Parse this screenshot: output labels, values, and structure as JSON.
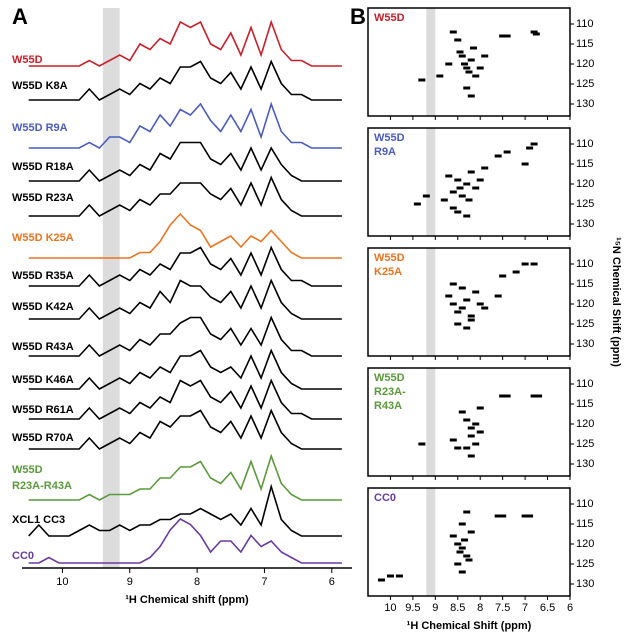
{
  "chart_data": [
    {
      "type": "line",
      "panel_label": "A",
      "xlabel": "¹H Chemical shift (ppm)",
      "xlim": [
        10.6,
        5.7
      ],
      "xticks": [
        10,
        9,
        8,
        7,
        6
      ],
      "highlight_band": [
        9.4,
        9.15
      ],
      "x": [
        10.5,
        10.35,
        10.2,
        10.05,
        9.9,
        9.75,
        9.6,
        9.45,
        9.3,
        9.15,
        9.0,
        8.85,
        8.7,
        8.55,
        8.4,
        8.25,
        8.1,
        7.95,
        7.8,
        7.65,
        7.5,
        7.35,
        7.2,
        7.05,
        6.9,
        6.75,
        6.6,
        6.45,
        6.3,
        6.15,
        6.0,
        5.85
      ],
      "series": [
        {
          "name": [
            "W55D"
          ],
          "color": "#c8202a",
          "values": [
            0,
            0,
            0,
            0,
            0,
            0,
            1,
            0,
            1,
            2,
            1,
            4,
            3,
            5,
            4,
            8,
            7,
            8,
            4,
            3,
            6,
            2,
            7,
            2,
            8,
            3,
            1,
            1,
            0,
            0,
            0,
            0
          ]
        },
        {
          "name": [
            "W55D K8A"
          ],
          "color": "#000000",
          "values": [
            0,
            0,
            0,
            0,
            0,
            0,
            2,
            0,
            1,
            2,
            1,
            3,
            2,
            4,
            3,
            6,
            6,
            7,
            4,
            3,
            5,
            2,
            6,
            2,
            7,
            3,
            1,
            1,
            0,
            0,
            0,
            0
          ]
        },
        {
          "name": [
            "W55D R9A"
          ],
          "color": "#4a5cc0",
          "values": [
            0,
            0,
            0,
            0,
            0,
            0,
            1,
            0,
            2,
            2,
            1,
            4,
            3,
            6,
            4,
            7,
            6,
            8,
            5,
            3,
            6,
            3,
            7,
            2,
            8,
            3,
            1,
            1,
            0,
            0,
            0,
            0
          ]
        },
        {
          "name": [
            "W55D R18A"
          ],
          "color": "#000000",
          "values": [
            0,
            0,
            0,
            0,
            0,
            0,
            2,
            0,
            1,
            2,
            1,
            3,
            2,
            5,
            4,
            7,
            7,
            7,
            4,
            3,
            5,
            2,
            6,
            2,
            6,
            3,
            1,
            0,
            0,
            0,
            0,
            0
          ]
        },
        {
          "name": [
            "W55D R23A"
          ],
          "color": "#000000",
          "values": [
            0,
            0,
            0,
            0,
            0,
            0,
            2,
            0,
            1,
            2,
            1,
            3,
            2,
            4,
            4,
            6,
            6,
            6,
            4,
            3,
            5,
            2,
            6,
            2,
            7,
            3,
            1,
            0,
            0,
            0,
            0,
            0
          ]
        },
        {
          "name": [
            "W55D K25A"
          ],
          "color": "#ea7420",
          "values": [
            0,
            0,
            0,
            0,
            0,
            0,
            0,
            0,
            0,
            0,
            0,
            1,
            1,
            3,
            6,
            8,
            6,
            5,
            2,
            3,
            4,
            2,
            4,
            3,
            5,
            3,
            1,
            0,
            0,
            0,
            0,
            0
          ]
        },
        {
          "name": [
            "W55D R35A"
          ],
          "color": "#000000",
          "values": [
            0,
            0,
            0,
            0,
            0,
            0,
            2,
            0,
            1,
            2,
            1,
            3,
            2,
            4,
            3,
            6,
            6,
            7,
            4,
            3,
            5,
            2,
            6,
            2,
            7,
            3,
            1,
            1,
            0,
            0,
            0,
            0
          ]
        },
        {
          "name": [
            "W55D K42A"
          ],
          "color": "#000000",
          "values": [
            0,
            0,
            0,
            0,
            0,
            0,
            2,
            0,
            1,
            2,
            1,
            3,
            2,
            5,
            3,
            7,
            6,
            6,
            4,
            3,
            5,
            2,
            6,
            2,
            7,
            3,
            1,
            0,
            0,
            0,
            0,
            0
          ]
        },
        {
          "name": [
            "W55D R43A"
          ],
          "color": "#000000",
          "values": [
            0,
            0,
            0,
            0,
            0,
            0,
            2,
            0,
            1,
            2,
            1,
            3,
            2,
            4,
            4,
            6,
            7,
            7,
            4,
            3,
            5,
            2,
            5,
            2,
            7,
            3,
            1,
            1,
            0,
            0,
            0,
            0
          ]
        },
        {
          "name": [
            "W55D K46A"
          ],
          "color": "#000000",
          "values": [
            0,
            0,
            0,
            0,
            0,
            0,
            2,
            0,
            1,
            2,
            1,
            3,
            2,
            4,
            3,
            6,
            6,
            7,
            4,
            3,
            4,
            2,
            6,
            2,
            7,
            3,
            1,
            0,
            0,
            0,
            0,
            0
          ]
        },
        {
          "name": [
            "W55D R61A"
          ],
          "color": "#000000",
          "values": [
            0,
            0,
            0,
            0,
            0,
            0,
            2,
            0,
            1,
            2,
            1,
            3,
            2,
            4,
            3,
            7,
            6,
            7,
            4,
            3,
            5,
            2,
            6,
            2,
            7,
            3,
            1,
            1,
            0,
            0,
            0,
            0
          ]
        },
        {
          "name": [
            "W55D R70A"
          ],
          "color": "#000000",
          "values": [
            0,
            0,
            0,
            0,
            0,
            0,
            2,
            0,
            1,
            2,
            1,
            3,
            2,
            5,
            4,
            6,
            6,
            7,
            4,
            3,
            5,
            2,
            6,
            2,
            7,
            3,
            1,
            0,
            0,
            0,
            0,
            0
          ]
        },
        {
          "name": [
            "W55D",
            "R23A-R43A"
          ],
          "color": "#5a9a3a",
          "values": [
            0,
            0,
            0,
            0,
            0,
            0,
            1,
            0,
            1,
            1,
            1,
            2,
            2,
            4,
            4,
            6,
            6,
            7,
            4,
            3,
            5,
            2,
            7,
            2,
            8,
            3,
            1,
            0,
            0,
            0,
            0,
            0
          ]
        },
        {
          "name": [
            "XCL1 CC3"
          ],
          "color": "#000000",
          "values": [
            0,
            2,
            0,
            0,
            0,
            1,
            2,
            1,
            1,
            2,
            1,
            2,
            2,
            3,
            3,
            4,
            4,
            5,
            4,
            3,
            4,
            2,
            5,
            2,
            9,
            3,
            1,
            0,
            0,
            0,
            0,
            0
          ]
        },
        {
          "name": [
            "CC0"
          ],
          "color": "#6a3aa0",
          "values": [
            0,
            0,
            1,
            0,
            0,
            0,
            0,
            0,
            0,
            0,
            0,
            0,
            1,
            3,
            6,
            8,
            7,
            5,
            2,
            4,
            4,
            2,
            5,
            3,
            4,
            2,
            1,
            0,
            0,
            0,
            0,
            0
          ]
        }
      ]
    },
    {
      "type": "scatter",
      "panel_label": "B",
      "title": [
        "W55D"
      ],
      "color": "#c8202a",
      "xlim": [
        10.5,
        6
      ],
      "ylim": [
        106,
        133
      ],
      "xticks": [
        10,
        9.5,
        9,
        8.5,
        8,
        7.5,
        7,
        6.5,
        6
      ],
      "yticks": [
        110,
        115,
        120,
        125,
        130
      ],
      "highlight_band": [
        9.2,
        9.0
      ],
      "x": [
        8.6,
        8.5,
        8.45,
        8.4,
        8.35,
        8.3,
        8.25,
        8.2,
        8.15,
        8.1,
        8.0,
        7.9,
        7.5,
        7.4,
        6.8,
        6.75,
        8.7,
        8.9,
        9.3,
        8.3,
        8.2
      ],
      "y": [
        112,
        114,
        117,
        118,
        120,
        121,
        122,
        119,
        116,
        123,
        121,
        118,
        113,
        113,
        112,
        112.5,
        120,
        123,
        124,
        126,
        128
      ]
    },
    {
      "type": "scatter",
      "title": [
        "W55D",
        "R9A"
      ],
      "color": "#4a5cc0",
      "xlim": [
        10.5,
        6
      ],
      "ylim": [
        106,
        133
      ],
      "xticks": [
        10,
        9.5,
        9,
        8.5,
        8,
        7.5,
        7,
        6.5,
        6
      ],
      "yticks": [
        110,
        115,
        120,
        125,
        130
      ],
      "highlight_band": [
        9.2,
        9.0
      ],
      "x": [
        8.7,
        8.6,
        8.5,
        8.45,
        8.4,
        8.3,
        8.25,
        8.2,
        8.1,
        8.0,
        7.9,
        8.6,
        8.8,
        9.2,
        9.4,
        7.6,
        7.4,
        7.0,
        6.9,
        6.8,
        8.3,
        8.5
      ],
      "y": [
        118,
        122,
        119,
        121,
        123,
        120,
        124,
        117,
        121,
        119,
        116,
        126,
        124,
        123,
        125,
        113,
        112,
        115,
        111,
        110,
        128,
        127
      ]
    },
    {
      "type": "scatter",
      "title": [
        "W55D",
        "K25A"
      ],
      "color": "#ea7420",
      "ylabel": "¹⁵N Chemical Shift (ppm)",
      "xlim": [
        10.5,
        6
      ],
      "ylim": [
        106,
        133
      ],
      "xticks": [
        10,
        9.5,
        9,
        8.5,
        8,
        7.5,
        7,
        6.5,
        6
      ],
      "yticks": [
        110,
        115,
        120,
        125,
        130
      ],
      "highlight_band": [
        9.2,
        9.0
      ],
      "x": [
        8.7,
        8.6,
        8.5,
        8.4,
        8.3,
        8.2,
        8.1,
        8.0,
        8.5,
        8.3,
        7.5,
        7.2,
        7.0,
        6.8,
        7.6,
        8.6,
        8.4,
        8.2,
        7.9
      ],
      "y": [
        118,
        120,
        122,
        121,
        119,
        123,
        117,
        120,
        125,
        126,
        113,
        112,
        110,
        110,
        118,
        115,
        116,
        124,
        121
      ]
    },
    {
      "type": "scatter",
      "title": [
        "W55D",
        "R23A-",
        "R43A"
      ],
      "color": "#5a9a3a",
      "xlim": [
        10.5,
        6
      ],
      "ylim": [
        106,
        133
      ],
      "xticks": [
        10,
        9.5,
        9,
        8.5,
        8,
        7.5,
        7,
        6.5,
        6
      ],
      "yticks": [
        110,
        115,
        120,
        125,
        130
      ],
      "highlight_band": [
        9.2,
        9.0
      ],
      "x": [
        8.4,
        8.3,
        8.2,
        8.1,
        8.0,
        8.2,
        8.1,
        8.3,
        8.0,
        7.5,
        7.4,
        6.8,
        6.7,
        8.6,
        9.3,
        8.5,
        8.2
      ],
      "y": [
        117,
        119,
        121,
        120,
        122,
        123,
        125,
        126,
        116,
        113,
        113,
        113,
        113,
        124,
        125,
        126,
        128
      ]
    },
    {
      "type": "scatter",
      "title": [
        "CC0"
      ],
      "color": "#6a3aa0",
      "xlabel": "¹H Chemical Shift (ppm)",
      "xlim": [
        10.5,
        6
      ],
      "ylim": [
        106,
        133
      ],
      "xticks": [
        10,
        9.5,
        9,
        8.5,
        8,
        7.5,
        7,
        6.5,
        6
      ],
      "yticks": [
        110,
        115,
        120,
        125,
        130
      ],
      "highlight_band": [
        9.2,
        9.0
      ],
      "x": [
        8.6,
        8.5,
        8.45,
        8.4,
        8.35,
        8.3,
        8.25,
        8.2,
        8.4,
        8.3,
        7.6,
        7.5,
        7.0,
        6.9,
        10.2,
        9.8,
        10.0,
        8.5,
        8.4
      ],
      "y": [
        118,
        120,
        122,
        121,
        119,
        123,
        124,
        117,
        115,
        112,
        113,
        113,
        113,
        113,
        129,
        128,
        128,
        125,
        127
      ]
    }
  ]
}
